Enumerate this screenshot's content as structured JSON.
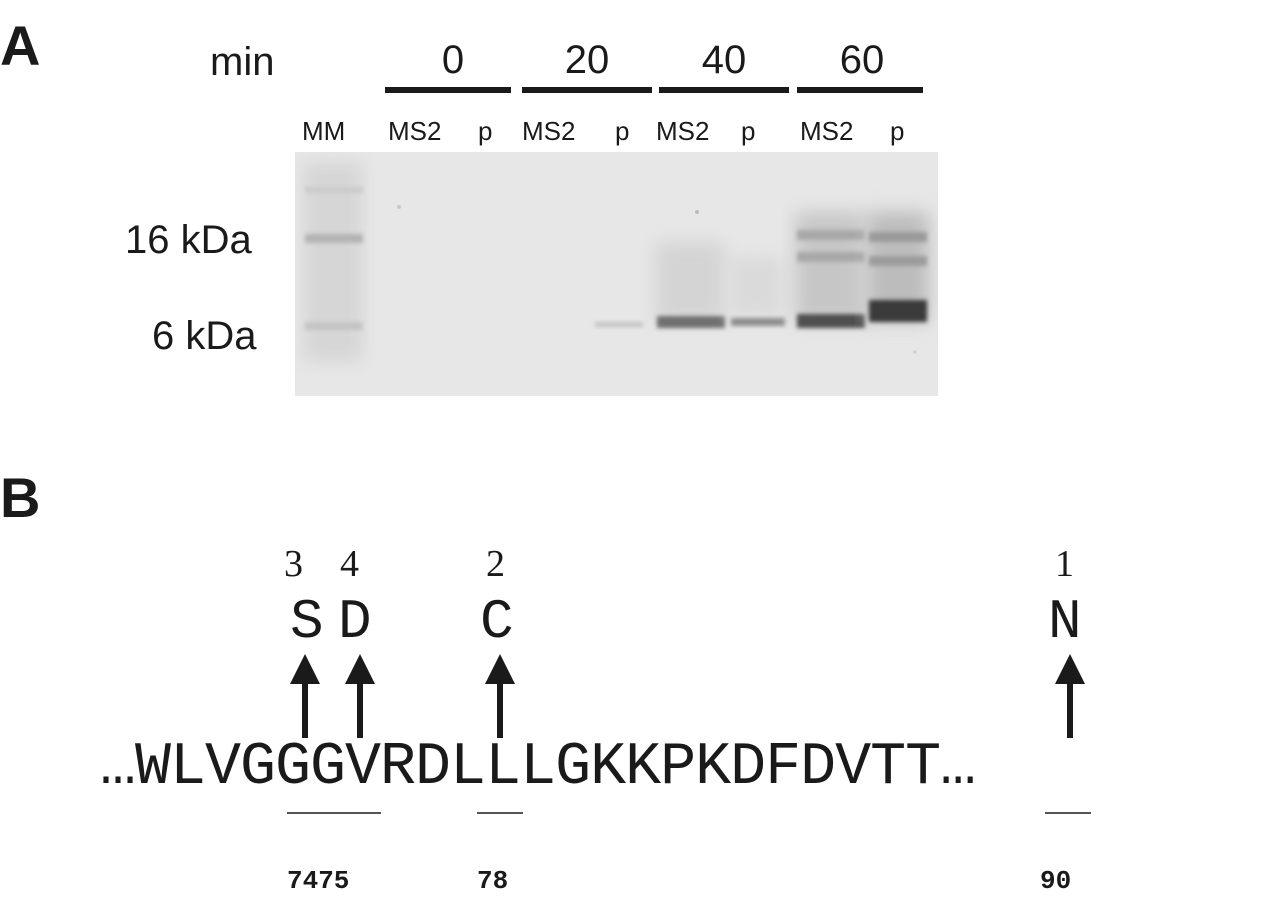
{
  "panel_a": {
    "label": "A",
    "time_axis_label": "min",
    "time_points": [
      "0",
      "20",
      "40",
      "60"
    ],
    "lanes": [
      "MM",
      "MS2",
      "p",
      "MS2",
      "p",
      "MS2",
      "p",
      "MS2",
      "p"
    ],
    "markers": [
      "16 kDa",
      "6 kDa"
    ]
  },
  "panel_b": {
    "label": "B",
    "substitutions": [
      {
        "rank": "3",
        "residue": "S"
      },
      {
        "rank": "4",
        "residue": "D"
      },
      {
        "rank": "2",
        "residue": "C"
      },
      {
        "rank": "1",
        "residue": "N"
      }
    ],
    "sequence": "…WLVGGGVRDLLLGKKPKDFDVTT…",
    "positions": [
      "7475",
      "78",
      "90"
    ]
  }
}
